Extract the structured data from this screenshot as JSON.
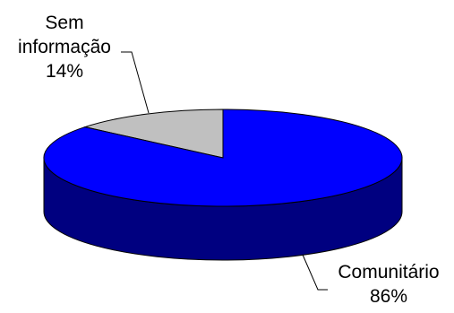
{
  "chart_data": {
    "type": "pie",
    "three_d": true,
    "slices": [
      {
        "label_lines": [
          "Sem",
          "informação"
        ],
        "percent_label": "14%",
        "value": 14,
        "color": "#c0c0c0",
        "side_color": "#808080"
      },
      {
        "label_lines": [
          "Comunitário"
        ],
        "percent_label": "86%",
        "value": 86,
        "color": "#0000ff",
        "side_color": "#000080"
      }
    ],
    "title": "",
    "legend": "none"
  }
}
